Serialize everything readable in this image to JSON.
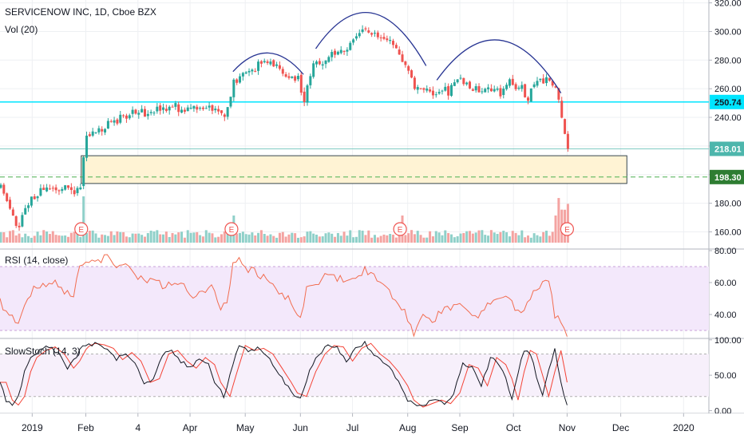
{
  "header": {
    "symbol_line": "SERVICENOW INC, 1D, Cboe BZX",
    "volume_label": "Vol (20)",
    "rsi_label": "RSI (14, close)",
    "stoch_label": "SlowStoch (14, 3)"
  },
  "chart_data": {
    "type": "candlestick",
    "price_axis": {
      "ticks": [
        160,
        180,
        200,
        220,
        240,
        260,
        280,
        300,
        320
      ],
      "tick_labels": [
        "160.00",
        "180.00",
        "200.00",
        "220.00",
        "240.00",
        "260.00",
        "280.00",
        "300.00",
        "320.00"
      ],
      "range": [
        148,
        322
      ]
    },
    "price_badges": [
      {
        "label": "250.74",
        "value": 250.74,
        "color": "#00e5ff"
      },
      {
        "label": "218.01",
        "value": 218.01,
        "color": "#4db6ac"
      },
      {
        "label": "198.30",
        "value": 198.3,
        "color": "#2e7d32"
      }
    ],
    "horizontal_lines": [
      {
        "value": 250.74,
        "color": "#00e5ff",
        "style": "solid"
      },
      {
        "value": 198.3,
        "color": "#4caf50",
        "style": "dashed"
      }
    ],
    "support_zone": {
      "from": 193.8,
      "to": 213.2,
      "fill": "#fff3d4",
      "stroke": "#37474f"
    },
    "time_axis": {
      "labels": [
        "2019",
        "Feb",
        "4",
        "Apr",
        "May",
        "Jun",
        "Jul",
        "Aug",
        "Sep",
        "Oct",
        "Nov",
        "Dec",
        "2020"
      ],
      "label_days": [
        21,
        56,
        90,
        124,
        160,
        196,
        230,
        266,
        300,
        335,
        370,
        405,
        446
      ]
    },
    "earnings_markers": {
      "label": "E",
      "days": [
        53,
        151,
        261,
        370
      ]
    },
    "price_path_anchors": [
      [
        0,
        190
      ],
      [
        8,
        172
      ],
      [
        12,
        162
      ],
      [
        16,
        178
      ],
      [
        22,
        185
      ],
      [
        28,
        190
      ],
      [
        34,
        190
      ],
      [
        40,
        191
      ],
      [
        46,
        187
      ],
      [
        52,
        192
      ],
      [
        55,
        226
      ],
      [
        62,
        228
      ],
      [
        70,
        236
      ],
      [
        78,
        239
      ],
      [
        86,
        244
      ],
      [
        94,
        243
      ],
      [
        104,
        246
      ],
      [
        112,
        248
      ],
      [
        120,
        245
      ],
      [
        128,
        247
      ],
      [
        138,
        247
      ],
      [
        146,
        242
      ],
      [
        148,
        248
      ],
      [
        152,
        264
      ],
      [
        158,
        272
      ],
      [
        166,
        275
      ],
      [
        172,
        279
      ],
      [
        178,
        276
      ],
      [
        186,
        270
      ],
      [
        194,
        266
      ],
      [
        198,
        252
      ],
      [
        204,
        276
      ],
      [
        210,
        280
      ],
      [
        218,
        286
      ],
      [
        228,
        291
      ],
      [
        236,
        302
      ],
      [
        244,
        298
      ],
      [
        250,
        296
      ],
      [
        258,
        290
      ],
      [
        264,
        276
      ],
      [
        270,
        262
      ],
      [
        276,
        260
      ],
      [
        282,
        258
      ],
      [
        288,
        261
      ],
      [
        292,
        258
      ],
      [
        300,
        266
      ],
      [
        306,
        262
      ],
      [
        314,
        258
      ],
      [
        320,
        260
      ],
      [
        326,
        256
      ],
      [
        332,
        264
      ],
      [
        340,
        260
      ],
      [
        344,
        254
      ],
      [
        350,
        264
      ],
      [
        356,
        268
      ],
      [
        362,
        260
      ],
      [
        366,
        240
      ],
      [
        370,
        218
      ]
    ],
    "arc_patterns": [
      {
        "from_day": 152,
        "to_day": 198,
        "from_value": 272,
        "peak_value": 285,
        "to_value": 270
      },
      {
        "from_day": 206,
        "to_day": 278,
        "from_value": 288,
        "peak_value": 313,
        "to_value": 276
      },
      {
        "from_day": 285,
        "to_day": 366,
        "from_value": 266,
        "peak_value": 294,
        "to_value": 257
      }
    ],
    "rsi": {
      "axis_labels": [
        "80.00",
        "60.00",
        "40.00"
      ],
      "ticks": [
        80,
        60,
        40
      ],
      "range": [
        25,
        81
      ],
      "band": [
        30,
        70
      ],
      "anchors": [
        [
          0,
          48
        ],
        [
          6,
          38
        ],
        [
          12,
          36
        ],
        [
          18,
          50
        ],
        [
          24,
          58
        ],
        [
          30,
          58
        ],
        [
          36,
          60
        ],
        [
          42,
          55
        ],
        [
          48,
          52
        ],
        [
          53,
          72
        ],
        [
          58,
          75
        ],
        [
          64,
          73
        ],
        [
          70,
          76
        ],
        [
          76,
          70
        ],
        [
          82,
          73
        ],
        [
          88,
          65
        ],
        [
          94,
          63
        ],
        [
          100,
          60
        ],
        [
          108,
          58
        ],
        [
          114,
          62
        ],
        [
          120,
          57
        ],
        [
          126,
          52
        ],
        [
          132,
          55
        ],
        [
          138,
          58
        ],
        [
          144,
          45
        ],
        [
          148,
          45
        ],
        [
          152,
          70
        ],
        [
          156,
          75
        ],
        [
          162,
          68
        ],
        [
          168,
          66
        ],
        [
          176,
          60
        ],
        [
          184,
          52
        ],
        [
          190,
          48
        ],
        [
          196,
          36
        ],
        [
          200,
          55
        ],
        [
          206,
          58
        ],
        [
          214,
          65
        ],
        [
          222,
          62
        ],
        [
          230,
          63
        ],
        [
          238,
          68
        ],
        [
          244,
          65
        ],
        [
          250,
          60
        ],
        [
          256,
          52
        ],
        [
          262,
          45
        ],
        [
          266,
          38
        ],
        [
          270,
          29
        ],
        [
          276,
          38
        ],
        [
          282,
          36
        ],
        [
          288,
          42
        ],
        [
          294,
          45
        ],
        [
          300,
          48
        ],
        [
          306,
          43
        ],
        [
          312,
          38
        ],
        [
          318,
          46
        ],
        [
          324,
          48
        ],
        [
          330,
          52
        ],
        [
          336,
          44
        ],
        [
          342,
          42
        ],
        [
          346,
          50
        ],
        [
          352,
          58
        ],
        [
          358,
          60
        ],
        [
          362,
          40
        ],
        [
          366,
          35
        ],
        [
          370,
          28
        ]
      ],
      "color": "#f26d50"
    },
    "stochastic": {
      "axis_labels": [
        "100.00",
        "50.00",
        "0.00"
      ],
      "ticks": [
        100,
        50,
        0
      ],
      "range": [
        -4,
        102
      ],
      "band": [
        20,
        80
      ],
      "k_anchors": [
        [
          0,
          40
        ],
        [
          4,
          15
        ],
        [
          8,
          8
        ],
        [
          12,
          20
        ],
        [
          16,
          55
        ],
        [
          20,
          75
        ],
        [
          26,
          85
        ],
        [
          32,
          90
        ],
        [
          38,
          80
        ],
        [
          44,
          60
        ],
        [
          48,
          70
        ],
        [
          53,
          90
        ],
        [
          58,
          95
        ],
        [
          64,
          93
        ],
        [
          70,
          88
        ],
        [
          76,
          72
        ],
        [
          82,
          82
        ],
        [
          88,
          70
        ],
        [
          94,
          40
        ],
        [
          100,
          45
        ],
        [
          106,
          80
        ],
        [
          112,
          85
        ],
        [
          118,
          70
        ],
        [
          124,
          60
        ],
        [
          130,
          75
        ],
        [
          136,
          65
        ],
        [
          140,
          40
        ],
        [
          146,
          20
        ],
        [
          150,
          50
        ],
        [
          156,
          92
        ],
        [
          162,
          85
        ],
        [
          168,
          88
        ],
        [
          174,
          80
        ],
        [
          180,
          60
        ],
        [
          186,
          40
        ],
        [
          190,
          25
        ],
        [
          196,
          20
        ],
        [
          202,
          55
        ],
        [
          208,
          80
        ],
        [
          214,
          92
        ],
        [
          220,
          90
        ],
        [
          226,
          70
        ],
        [
          232,
          88
        ],
        [
          238,
          95
        ],
        [
          244,
          80
        ],
        [
          250,
          70
        ],
        [
          256,
          55
        ],
        [
          262,
          35
        ],
        [
          266,
          15
        ],
        [
          272,
          5
        ],
        [
          278,
          10
        ],
        [
          284,
          15
        ],
        [
          290,
          10
        ],
        [
          296,
          25
        ],
        [
          302,
          65
        ],
        [
          308,
          60
        ],
        [
          314,
          35
        ],
        [
          320,
          75
        ],
        [
          326,
          65
        ],
        [
          330,
          45
        ],
        [
          334,
          15
        ],
        [
          338,
          55
        ],
        [
          342,
          85
        ],
        [
          346,
          80
        ],
        [
          350,
          50
        ],
        [
          354,
          20
        ],
        [
          358,
          55
        ],
        [
          362,
          85
        ],
        [
          366,
          40
        ],
        [
          370,
          8
        ]
      ],
      "k_color": "#131722",
      "d_color": "#f44336"
    },
    "volume_color_up": "#26a69a",
    "volume_color_down": "#ef5350"
  }
}
